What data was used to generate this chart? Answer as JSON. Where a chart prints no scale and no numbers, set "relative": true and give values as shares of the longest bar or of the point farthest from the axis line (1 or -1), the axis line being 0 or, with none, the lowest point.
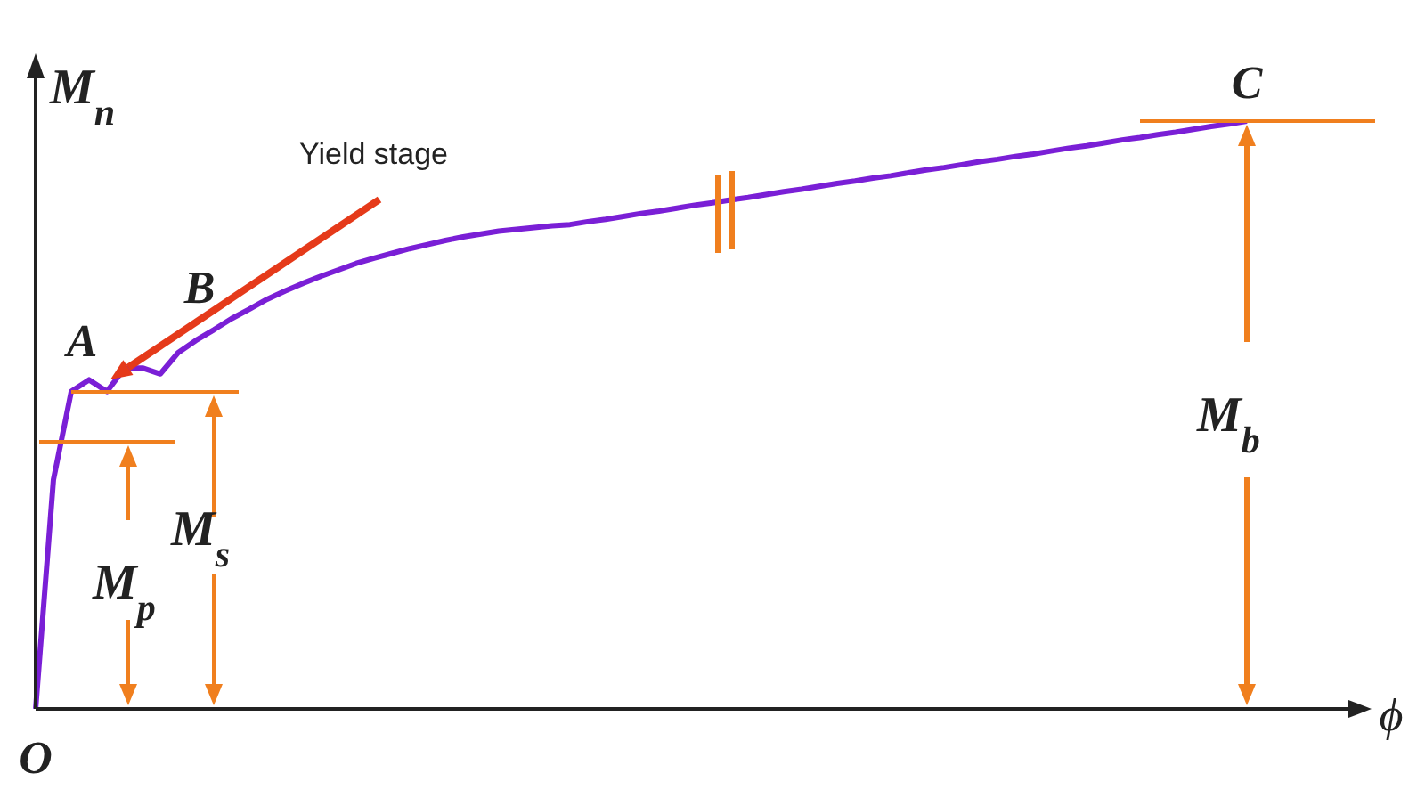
{
  "chart_data": {
    "type": "line",
    "relative": true,
    "marker": "none",
    "xlabel": "ϕ",
    "ylabel": "M$_{n}$",
    "annotations": [
      "O",
      "A",
      "B",
      "C",
      "Yield stage",
      "M$_{p}$",
      "M$_{s}$",
      "M$_{b}$"
    ],
    "categories": [
      null,
      null,
      null,
      null,
      null,
      null,
      null,
      null,
      null,
      null,
      null,
      null,
      null,
      null,
      null,
      null,
      null,
      null,
      null,
      null,
      null,
      null,
      null,
      null,
      null,
      null,
      null,
      null,
      null,
      null,
      null,
      null,
      null,
      null,
      null,
      null,
      null,
      null,
      null,
      null,
      null,
      null,
      null,
      null,
      null,
      null,
      null,
      null,
      null,
      null,
      null,
      null,
      null,
      null,
      null,
      null,
      null,
      null,
      null,
      null,
      null,
      null,
      null,
      null,
      null,
      null,
      null,
      null,
      null,
      null,
      null,
      null,
      null,
      null,
      null
    ],
    "series": [
      {
        "color": "#7a1fd6",
        "values": [
          0,
          0.39,
          0.54,
          0.56,
          0.54,
          0.58,
          0.58,
          0.57,
          0.606,
          0.627,
          0.645,
          0.664,
          0.68,
          0.697,
          0.711,
          0.724,
          0.736,
          0.747,
          0.758,
          0.767,
          0.775,
          0.783,
          0.79,
          0.797,
          0.803,
          0.808,
          0.813,
          0.816,
          0.819,
          0.822,
          0.824,
          0.829,
          0.833,
          0.838,
          0.843,
          0.847,
          0.852,
          0.857,
          0.861,
          0.866,
          0.87,
          0.875,
          0.88,
          0.884,
          0.889,
          0.894,
          0.898,
          0.903,
          0.907,
          0.912,
          0.917,
          0.921,
          0.926,
          0.931,
          0.935,
          0.94,
          0.944,
          0.949,
          0.954,
          0.958,
          0.963,
          0.968,
          0.972,
          0.977,
          0.981,
          0.986,
          0.991,
          0.995,
          1,
          null,
          null,
          null,
          null,
          null,
          null
        ]
      }
    ]
  }
}
